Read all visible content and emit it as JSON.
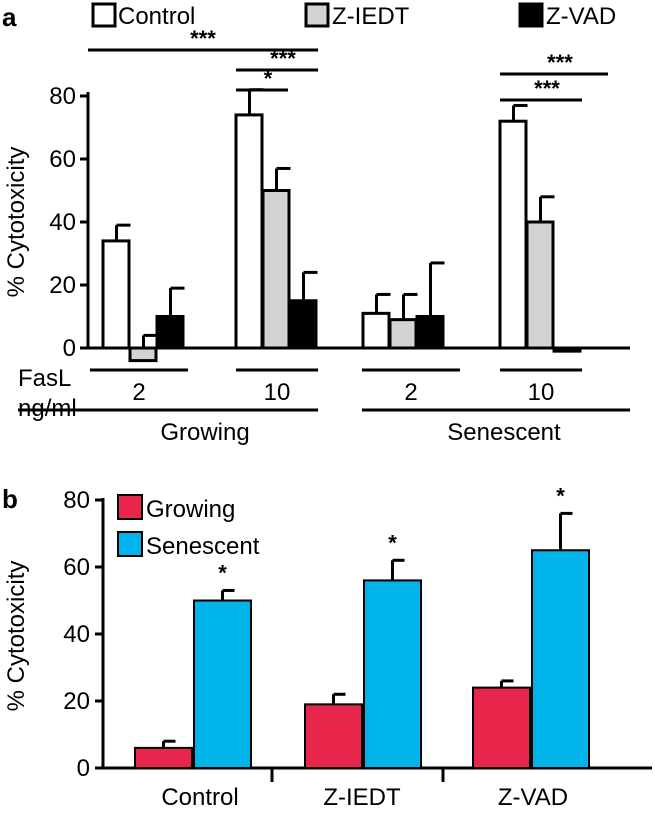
{
  "chart_data": [
    {
      "panel": "a",
      "type": "bar",
      "ylabel": "% Cytotoxicity",
      "ylim": [
        0,
        80
      ],
      "yticks": [
        0,
        20,
        40,
        60,
        80
      ],
      "legend": [
        {
          "label": "Control",
          "color": "#ffffff"
        },
        {
          "label": "Z-IEDT",
          "color": "#d3d3d3"
        },
        {
          "label": "Z-VAD",
          "color": "#000000"
        }
      ],
      "x_axis_title": "FasL",
      "x_axis_unit": "ng/ml",
      "categories": [
        {
          "dose": "2",
          "condition": "Growing"
        },
        {
          "dose": "10",
          "condition": "Growing"
        },
        {
          "dose": "2",
          "condition": "Senescent"
        },
        {
          "dose": "10",
          "condition": "Senescent"
        }
      ],
      "condition_labels": [
        "Growing",
        "Senescent"
      ],
      "series": [
        {
          "name": "Control",
          "values": [
            34,
            74,
            11,
            72
          ],
          "errors": [
            5,
            8,
            6,
            5
          ]
        },
        {
          "name": "Z-IEDT",
          "values": [
            -4,
            50,
            9,
            40
          ],
          "errors": [
            8,
            7,
            8,
            8
          ]
        },
        {
          "name": "Z-VAD",
          "values": [
            10,
            15,
            10,
            -1
          ],
          "errors": [
            9,
            9,
            17,
            0
          ]
        }
      ],
      "significance": [
        {
          "label": "***",
          "from": "2 Growing Control",
          "to": "10 Growing Z-VAD"
        },
        {
          "label": "***",
          "from": "10 Growing Control",
          "to": "10 Growing Z-VAD"
        },
        {
          "label": "*",
          "from": "10 Growing Control",
          "to": "10 Growing Z-IEDT"
        },
        {
          "label": "***",
          "from": "10 Senescent Control",
          "to": "10 Senescent Z-VAD"
        },
        {
          "label": "***",
          "from": "10 Senescent Control",
          "to": "10 Senescent Z-IEDT"
        }
      ]
    },
    {
      "panel": "b",
      "type": "bar",
      "ylabel": "% Cytotoxicity",
      "ylim": [
        0,
        80
      ],
      "yticks": [
        0,
        20,
        40,
        60,
        80
      ],
      "categories": [
        "Control",
        "Z-IEDT",
        "Z-VAD"
      ],
      "series": [
        {
          "name": "Growing",
          "color": "#e8254b",
          "values": [
            6,
            19,
            24
          ],
          "errors": [
            2,
            3,
            2
          ]
        },
        {
          "name": "Senescent",
          "color": "#00b4ea",
          "values": [
            50,
            56,
            65
          ],
          "errors": [
            3,
            6,
            11
          ]
        }
      ],
      "significance_label": "*"
    }
  ]
}
